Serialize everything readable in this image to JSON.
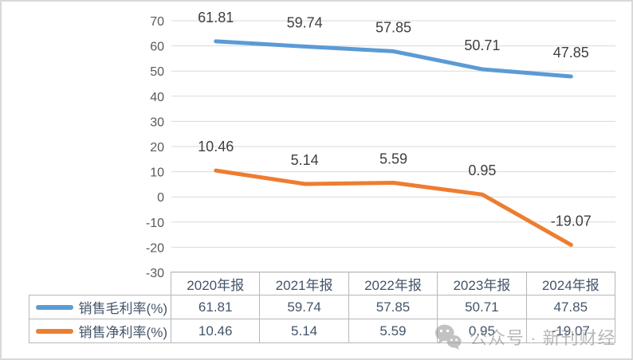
{
  "chart_data": {
    "type": "line",
    "title": "",
    "xlabel": "",
    "ylabel": "",
    "categories": [
      "2020年报",
      "2021年报",
      "2022年报",
      "2023年报",
      "2024年报"
    ],
    "series": [
      {
        "name": "销售毛利率(%)",
        "color": "#5B9BD5",
        "values": [
          61.81,
          59.74,
          57.85,
          50.71,
          47.85
        ]
      },
      {
        "name": "销售净利率(%)",
        "color": "#ED7D31",
        "values": [
          10.46,
          5.14,
          5.59,
          0.95,
          -19.07
        ]
      }
    ],
    "ylim": [
      -30,
      70
    ],
    "yticks": [
      70,
      60,
      50,
      40,
      30,
      20,
      10,
      0,
      -10,
      -20,
      -30
    ],
    "grid": true,
    "data_labels": true,
    "legend_position": "data-table-left"
  },
  "watermark": {
    "icon": "wechat-icon",
    "text": "公众号 · 新刊财经"
  },
  "colors": {
    "gridline": "#D9D9D9",
    "axis_text": "#595959",
    "data_label_text": "#404040",
    "table_text": "#44546A",
    "table_border": "#B7B7B7",
    "frame_border": "#D9D9D9",
    "watermark_gray": "#9E9E9E",
    "background": "#FFFFFF"
  }
}
